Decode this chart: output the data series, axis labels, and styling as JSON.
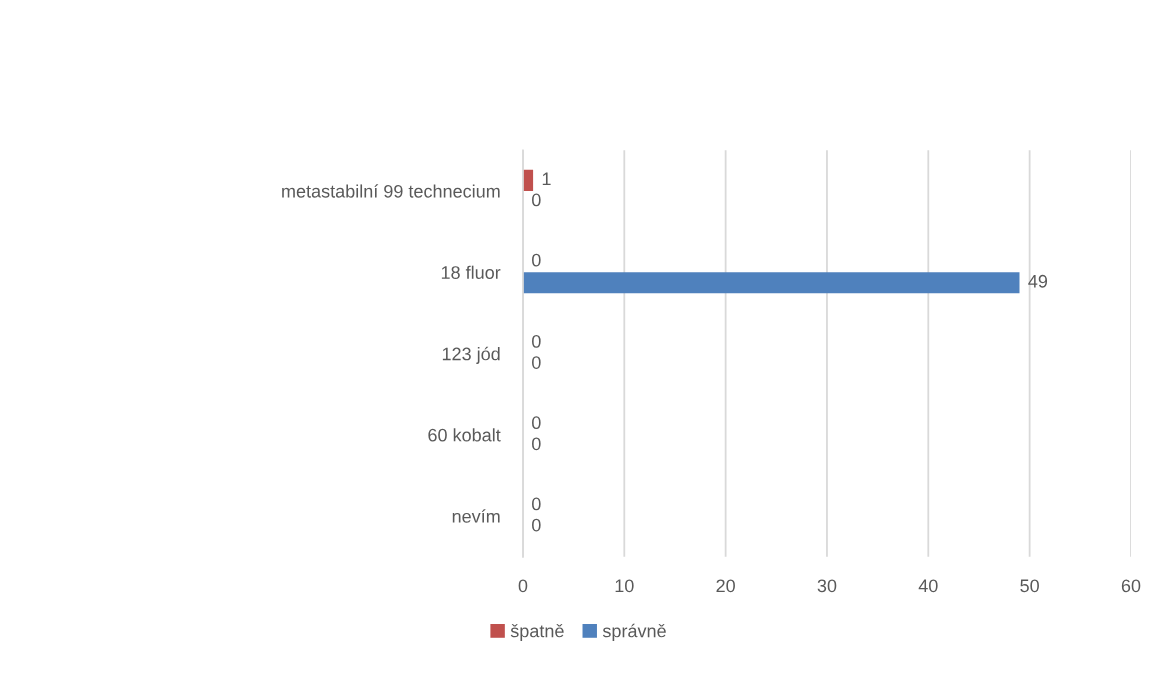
{
  "chart_data": {
    "type": "bar",
    "orientation": "horizontal",
    "categories": [
      "metastabilní 99 technecium",
      "18 fluor",
      "123 jód",
      "60 kobalt",
      "nevím"
    ],
    "series": [
      {
        "name": "špatně",
        "color": "#c0504d",
        "values": [
          1,
          0,
          0,
          0,
          0
        ]
      },
      {
        "name": "správně",
        "color": "#4f81bd",
        "values": [
          0,
          49,
          0,
          0,
          0
        ]
      }
    ],
    "xlim": [
      0,
      60
    ],
    "xticks": [
      0,
      10,
      20,
      30,
      40,
      50,
      60
    ],
    "grid": "x",
    "legend": "bottom",
    "data_labels": true
  }
}
